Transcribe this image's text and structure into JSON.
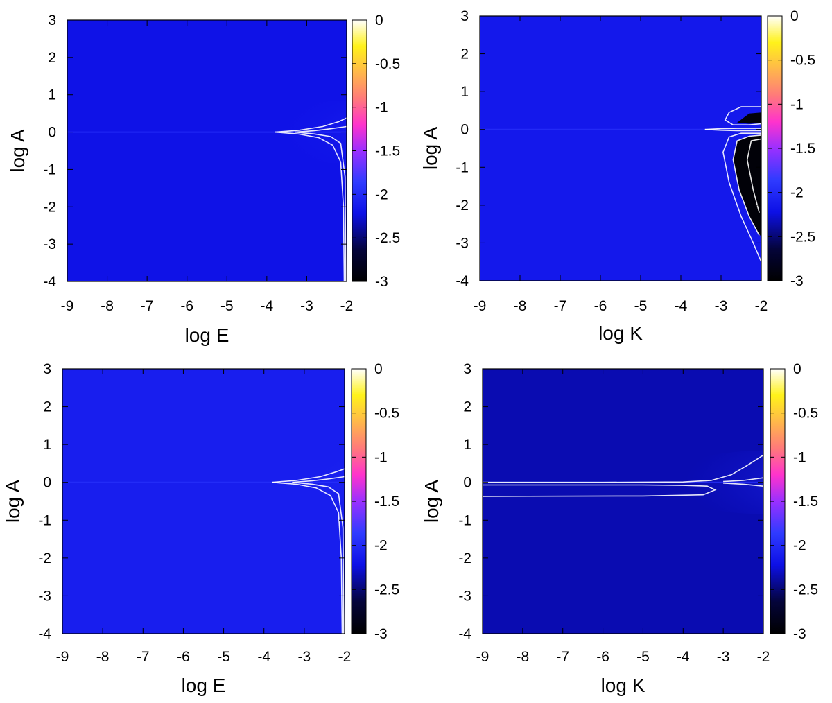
{
  "chart_data": [
    {
      "type": "heatmap",
      "xlabel": "log E",
      "ylabel": "log A",
      "xlim": [
        -9,
        -2
      ],
      "ylim": [
        -4,
        3
      ],
      "xticks": [
        "-9",
        "-8",
        "-7",
        "-6",
        "-5",
        "-4",
        "-3",
        "-2"
      ],
      "yticks": [
        "-4",
        "-3",
        "-2",
        "-1",
        "0",
        "1",
        "2",
        "3"
      ],
      "colorbar": {
        "range": [
          -3,
          0
        ],
        "ticks": [
          "0",
          "-0.5",
          "-1",
          "-1.5",
          "-2",
          "-2.5",
          "-3"
        ]
      },
      "background_value": -2.2,
      "feature": "sharp ridge along log A = 0 from log E ≈ -3.8 to -2; contours fan out near log E = -2, lower branch runs down to log A = -4",
      "contours": [
        {
          "points": [
            [
              -3.8,
              0.0
            ],
            [
              -3.2,
              0.05
            ],
            [
              -2.6,
              0.15
            ],
            [
              -2.2,
              0.28
            ],
            [
              -2.0,
              0.38
            ]
          ]
        },
        {
          "points": [
            [
              -3.8,
              0.0
            ],
            [
              -3.2,
              -0.05
            ],
            [
              -2.7,
              -0.15
            ],
            [
              -2.35,
              -0.35
            ],
            [
              -2.15,
              -0.8
            ],
            [
              -2.08,
              -2.0
            ],
            [
              -2.06,
              -4.0
            ]
          ]
        },
        {
          "points": [
            [
              -3.3,
              0.0
            ],
            [
              -2.8,
              0.04
            ],
            [
              -2.4,
              0.09
            ],
            [
              -2.0,
              0.15
            ]
          ]
        },
        {
          "points": [
            [
              -3.3,
              0.0
            ],
            [
              -2.8,
              -0.05
            ],
            [
              -2.4,
              -0.12
            ],
            [
              -2.15,
              -0.3
            ],
            [
              -2.04,
              -1.2
            ],
            [
              -2.02,
              -4.0
            ]
          ]
        }
      ]
    },
    {
      "type": "heatmap",
      "xlabel": "log K",
      "ylabel": "log A",
      "xlim": [
        -9,
        -2
      ],
      "ylim": [
        -4,
        3
      ],
      "xticks": [
        "-9",
        "-8",
        "-7",
        "-6",
        "-5",
        "-4",
        "-3",
        "-2"
      ],
      "yticks": [
        "-4",
        "-3",
        "-2",
        "-1",
        "0",
        "1",
        "2",
        "3"
      ],
      "colorbar": {
        "range": [
          -3,
          0
        ],
        "ticks": [
          "0",
          "-0.5",
          "-1",
          "-1.5",
          "-2",
          "-2.5",
          "-3"
        ]
      },
      "background_value": -2.15,
      "feature": "thin ridge along log A = 0; dark lobes (≈ -3) below the ridge between log K ≈ -2.8 and -2, closed loop above between log A 0.1 and 0.6",
      "contours": [
        {
          "points": [
            [
              -3.4,
              0.0
            ],
            [
              -3.0,
              0.02
            ],
            [
              -2.6,
              0.03
            ],
            [
              -2.0,
              0.03
            ]
          ]
        },
        {
          "points": [
            [
              -3.4,
              0.0
            ],
            [
              -3.0,
              -0.02
            ],
            [
              -2.6,
              -0.03
            ],
            [
              -2.0,
              -0.03
            ]
          ]
        },
        {
          "points": [
            [
              -2.0,
              0.6
            ],
            [
              -2.5,
              0.6
            ],
            [
              -2.8,
              0.45
            ],
            [
              -2.9,
              0.25
            ],
            [
              -2.7,
              0.12
            ],
            [
              -2.3,
              0.12
            ],
            [
              -2.0,
              0.15
            ]
          ]
        },
        {
          "points": [
            [
              -2.0,
              -0.1
            ],
            [
              -2.5,
              -0.1
            ],
            [
              -2.8,
              -0.2
            ],
            [
              -2.95,
              -0.6
            ],
            [
              -2.8,
              -1.4
            ],
            [
              -2.5,
              -2.3
            ],
            [
              -2.2,
              -3.0
            ],
            [
              -2.0,
              -3.5
            ]
          ]
        },
        {
          "points": [
            [
              -2.0,
              -0.15
            ],
            [
              -2.3,
              -0.18
            ],
            [
              -2.6,
              -0.3
            ],
            [
              -2.7,
              -0.8
            ],
            [
              -2.55,
              -1.6
            ],
            [
              -2.3,
              -2.3
            ],
            [
              -2.05,
              -2.8
            ]
          ]
        },
        {
          "points": [
            [
              -2.0,
              -0.25
            ],
            [
              -2.25,
              -0.3
            ],
            [
              -2.35,
              -0.8
            ],
            [
              -2.2,
              -1.6
            ],
            [
              -2.05,
              -2.2
            ]
          ]
        }
      ],
      "dark_regions": [
        {
          "points": [
            [
              -2.0,
              -0.15
            ],
            [
              -2.3,
              -0.18
            ],
            [
              -2.6,
              -0.3
            ],
            [
              -2.7,
              -0.8
            ],
            [
              -2.55,
              -1.6
            ],
            [
              -2.3,
              -2.3
            ],
            [
              -2.05,
              -2.8
            ],
            [
              -2.0,
              -2.8
            ]
          ]
        },
        {
          "points": [
            [
              -2.6,
              0.18
            ],
            [
              -2.3,
              0.15
            ],
            [
              -2.0,
              0.17
            ],
            [
              -2.0,
              0.45
            ],
            [
              -2.3,
              0.42
            ]
          ]
        }
      ]
    },
    {
      "type": "heatmap",
      "xlabel": "log E",
      "ylabel": "log A",
      "xlim": [
        -9,
        -2
      ],
      "ylim": [
        -4,
        3
      ],
      "xticks": [
        "-9",
        "-8",
        "-7",
        "-6",
        "-5",
        "-4",
        "-3",
        "-2"
      ],
      "yticks": [
        "-4",
        "-3",
        "-2",
        "-1",
        "0",
        "1",
        "2",
        "3"
      ],
      "colorbar": {
        "range": [
          -3,
          0
        ],
        "ticks": [
          "0",
          "-0.5",
          "-1",
          "-1.5",
          "-2",
          "-2.5",
          "-3"
        ]
      },
      "background_value": -2.1,
      "feature": "sharp ridge along log A = 0 from log E ≈ -3.8 to -2; contours fan out near log E = -2",
      "contours": [
        {
          "points": [
            [
              -3.8,
              0.0
            ],
            [
              -3.2,
              0.05
            ],
            [
              -2.6,
              0.15
            ],
            [
              -2.2,
              0.28
            ],
            [
              -2.0,
              0.36
            ]
          ]
        },
        {
          "points": [
            [
              -3.8,
              0.0
            ],
            [
              -3.2,
              -0.05
            ],
            [
              -2.7,
              -0.15
            ],
            [
              -2.35,
              -0.35
            ],
            [
              -2.15,
              -0.8
            ],
            [
              -2.08,
              -2.0
            ],
            [
              -2.06,
              -4.0
            ]
          ]
        },
        {
          "points": [
            [
              -3.3,
              0.0
            ],
            [
              -2.8,
              0.04
            ],
            [
              -2.4,
              0.09
            ],
            [
              -2.0,
              0.15
            ]
          ]
        },
        {
          "points": [
            [
              -3.3,
              0.0
            ],
            [
              -2.8,
              -0.05
            ],
            [
              -2.4,
              -0.12
            ],
            [
              -2.15,
              -0.3
            ],
            [
              -2.04,
              -1.2
            ],
            [
              -2.02,
              -4.0
            ]
          ]
        }
      ]
    },
    {
      "type": "heatmap",
      "xlabel": "log K",
      "ylabel": "log A",
      "xlim": [
        -9,
        -2
      ],
      "ylim": [
        -4,
        3
      ],
      "xticks": [
        "-9",
        "-8",
        "-7",
        "-6",
        "-5",
        "-4",
        "-3",
        "-2"
      ],
      "yticks": [
        "-4",
        "-3",
        "-2",
        "-1",
        "0",
        "1",
        "2",
        "3"
      ],
      "colorbar": {
        "range": [
          -3,
          0
        ],
        "ticks": [
          "0",
          "-0.5",
          "-1",
          "-1.5",
          "-2",
          "-2.5",
          "-3"
        ]
      },
      "background_value": -2.35,
      "feature": "long closed contour band between log A ≈ 0 and -0.35 across the whole log K range, upper contour rising to log A ≈ 0.7 at log K = -2",
      "contours": [
        {
          "points": [
            [
              -9.0,
              0.0
            ],
            [
              -6.0,
              0.0
            ],
            [
              -4.0,
              0.01
            ],
            [
              -3.3,
              0.05
            ],
            [
              -2.8,
              0.2
            ],
            [
              -2.4,
              0.45
            ],
            [
              -2.0,
              0.72
            ]
          ]
        },
        {
          "points": [
            [
              -9.0,
              -0.07
            ],
            [
              -6.0,
              -0.07
            ],
            [
              -5.0,
              -0.07
            ],
            [
              -4.0,
              -0.08
            ],
            [
              -3.4,
              -0.1
            ],
            [
              -3.2,
              -0.2
            ],
            [
              -3.5,
              -0.33
            ],
            [
              -5.0,
              -0.36
            ],
            [
              -9.0,
              -0.37
            ]
          ]
        },
        {
          "points": [
            [
              -3.0,
              0.02
            ],
            [
              -2.5,
              0.05
            ],
            [
              -2.0,
              0.12
            ]
          ]
        },
        {
          "points": [
            [
              -3.0,
              -0.02
            ],
            [
              -2.5,
              -0.05
            ],
            [
              -2.0,
              -0.1
            ]
          ]
        }
      ]
    }
  ]
}
